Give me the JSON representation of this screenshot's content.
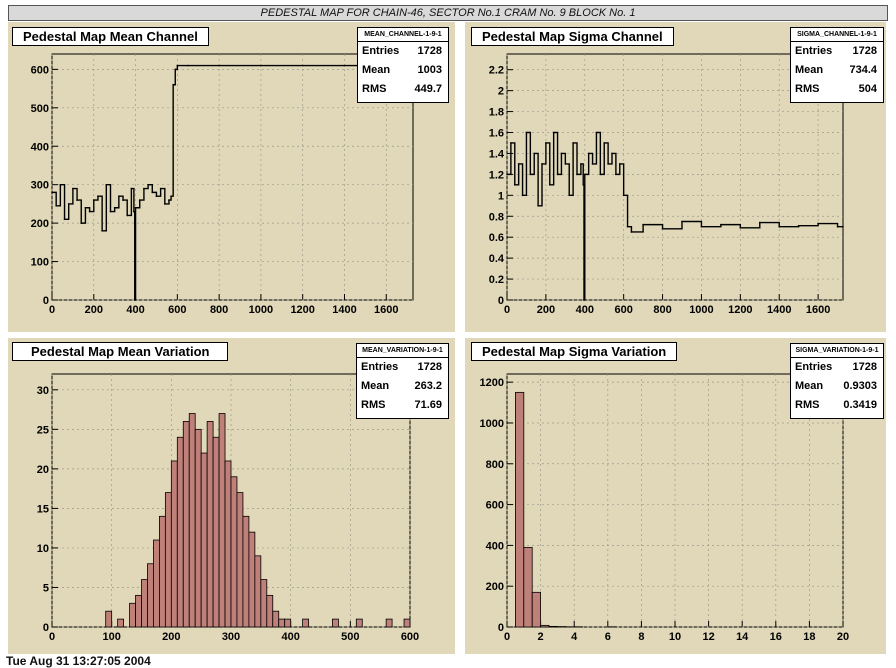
{
  "page_title": "PEDESTAL MAP FOR CHAIN-46, SECTOR No.1 CRAM No. 9 BLOCK No. 1",
  "footer_text": "Tue Aug 31 13:27:05 2004",
  "colors": {
    "pad_bg": "#e0d8b8",
    "hist_fill": "#c0807a",
    "line": "#000000",
    "grid": "#9a9a8a"
  },
  "panels": [
    {
      "title": "Pedestal Map Mean Channel",
      "stats": {
        "name": "MEAN_CHANNEL-1-9-1",
        "entries_label": "Entries",
        "entries": "1728",
        "mean_label": "Mean",
        "mean": "1003",
        "rms_label": "RMS",
        "rms": "449.7"
      }
    },
    {
      "title": "Pedestal Map Sigma Channel",
      "stats": {
        "name": "SIGMA_CHANNEL-1-9-1",
        "entries_label": "Entries",
        "entries": "1728",
        "mean_label": "Mean",
        "mean": "734.4",
        "rms_label": "RMS",
        "rms": "504"
      }
    },
    {
      "title": "Pedestal Map Mean Variation",
      "stats": {
        "name": "MEAN_VARIATION-1-9-1",
        "entries_label": "Entries",
        "entries": "1728",
        "mean_label": "Mean",
        "mean": "263.2",
        "rms_label": "RMS",
        "rms": "71.69"
      }
    },
    {
      "title": "Pedestal Map Sigma Variation",
      "stats": {
        "name": "SIGMA_VARIATION-1-9-1",
        "entries_label": "Entries",
        "entries": "1728",
        "mean_label": "Mean",
        "mean": "0.9303",
        "rms_label": "RMS",
        "rms": "0.3419"
      }
    }
  ],
  "chart_data": [
    {
      "type": "line",
      "title": "Pedestal Map Mean Channel",
      "grid": true,
      "xlim": [
        0,
        1728
      ],
      "ylim": [
        0,
        640
      ],
      "x_ticks": [
        0,
        200,
        400,
        600,
        800,
        1000,
        1200,
        1400,
        1600
      ],
      "y_ticks": [
        0,
        100,
        200,
        300,
        400,
        500,
        600
      ],
      "x": [
        0,
        20,
        40,
        60,
        80,
        100,
        120,
        140,
        160,
        180,
        200,
        220,
        240,
        260,
        280,
        300,
        320,
        340,
        360,
        380,
        392,
        396,
        400,
        420,
        440,
        460,
        480,
        500,
        520,
        540,
        560,
        570,
        580,
        590,
        600,
        650,
        800,
        1000,
        1200,
        1400,
        1600,
        1728
      ],
      "values": [
        280,
        245,
        300,
        210,
        250,
        290,
        260,
        200,
        240,
        230,
        260,
        270,
        180,
        300,
        230,
        240,
        270,
        260,
        220,
        290,
        230,
        0,
        240,
        260,
        290,
        300,
        280,
        270,
        290,
        250,
        260,
        270,
        560,
        600,
        610,
        610,
        610,
        610,
        610,
        610,
        610,
        610
      ]
    },
    {
      "type": "line",
      "title": "Pedestal Map Sigma Channel",
      "grid": true,
      "xlim": [
        0,
        1728
      ],
      "ylim": [
        0,
        2.35
      ],
      "x_ticks": [
        0,
        200,
        400,
        600,
        800,
        1000,
        1200,
        1400,
        1600
      ],
      "y_ticks": [
        0,
        0.2,
        0.4,
        0.6,
        0.8,
        1,
        1.2,
        1.4,
        1.6,
        1.8,
        2,
        2.2
      ],
      "x": [
        0,
        20,
        40,
        60,
        80,
        100,
        120,
        140,
        160,
        180,
        200,
        220,
        240,
        260,
        280,
        300,
        320,
        340,
        360,
        380,
        392,
        396,
        400,
        420,
        440,
        460,
        480,
        500,
        520,
        540,
        560,
        580,
        600,
        620,
        640,
        700,
        800,
        900,
        1000,
        1100,
        1200,
        1300,
        1400,
        1500,
        1600,
        1700,
        1728
      ],
      "values": [
        1.2,
        1.5,
        1.1,
        1.3,
        1.0,
        1.6,
        1.2,
        1.4,
        0.9,
        1.3,
        1.5,
        1.1,
        1.6,
        1.2,
        1.4,
        1.3,
        1.0,
        1.5,
        1.2,
        1.3,
        1.1,
        0,
        1.2,
        1.4,
        1.3,
        1.6,
        1.2,
        1.5,
        1.3,
        1.4,
        1.2,
        1.3,
        1.0,
        0.7,
        0.65,
        0.72,
        0.68,
        0.75,
        0.7,
        0.72,
        0.69,
        0.74,
        0.7,
        0.71,
        0.73,
        0.7,
        0.7
      ]
    },
    {
      "type": "bar",
      "title": "Pedestal Map Mean Variation",
      "grid": true,
      "xlim": [
        0,
        600
      ],
      "ylim": [
        0,
        32
      ],
      "x_ticks": [
        0,
        100,
        200,
        300,
        400,
        500,
        600
      ],
      "y_ticks": [
        0,
        5,
        10,
        15,
        20,
        25,
        30
      ],
      "bin_width": 10,
      "bin_starts": [
        90,
        100,
        110,
        120,
        130,
        140,
        150,
        160,
        170,
        180,
        190,
        200,
        210,
        220,
        230,
        240,
        250,
        260,
        270,
        280,
        290,
        300,
        310,
        320,
        330,
        340,
        350,
        360,
        370,
        380,
        390,
        400,
        410,
        420,
        430,
        440,
        450,
        460,
        470,
        480,
        490,
        500,
        510,
        520,
        530,
        540,
        550,
        560,
        570,
        580,
        590
      ],
      "values": [
        2,
        0,
        1,
        0,
        3,
        4,
        6,
        8,
        11,
        14,
        17,
        21,
        24,
        26,
        27,
        25,
        22,
        26,
        24,
        27,
        21,
        19,
        17,
        14,
        12,
        9,
        6,
        4,
        2,
        1,
        1,
        0,
        0,
        1,
        0,
        0,
        0,
        0,
        1,
        0,
        0,
        0,
        1,
        0,
        0,
        0,
        0,
        1,
        0,
        0,
        1
      ]
    },
    {
      "type": "bar",
      "title": "Pedestal Map Sigma Variation",
      "grid": true,
      "xlim": [
        0,
        20
      ],
      "ylim": [
        0,
        1240
      ],
      "x_ticks": [
        0,
        2,
        4,
        6,
        8,
        10,
        12,
        14,
        16,
        18,
        20
      ],
      "y_ticks": [
        0,
        200,
        400,
        600,
        800,
        1000,
        1200
      ],
      "bin_width": 0.5,
      "bin_starts": [
        0.5,
        1.0,
        1.5,
        2.0,
        2.5,
        3.0,
        3.5,
        4.0,
        4.5,
        5.0,
        5.5,
        6.0,
        6.5,
        7.0,
        7.5,
        8.0,
        8.5,
        9.0,
        9.5,
        10.0,
        10.5,
        11.0,
        11.5,
        12.0,
        12.5,
        13.0,
        13.5,
        14.0,
        14.5,
        15.0,
        15.5,
        16.0,
        16.5,
        17.0,
        17.5,
        18.0,
        18.5,
        19.0,
        19.5
      ],
      "values": [
        1150,
        390,
        170,
        8,
        3,
        2,
        1,
        1,
        0,
        0,
        0,
        1,
        0,
        0,
        0,
        0,
        0,
        0,
        0,
        0,
        0,
        0,
        0,
        0,
        0,
        0,
        0,
        0,
        0,
        0,
        0,
        0,
        0,
        0,
        0,
        0,
        0,
        0,
        0
      ]
    }
  ]
}
